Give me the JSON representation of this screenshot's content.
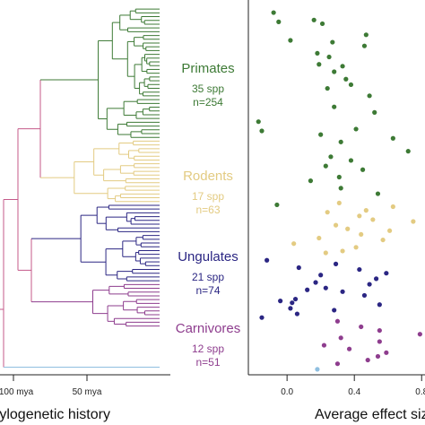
{
  "chart_data": [
    {
      "type": "tree",
      "xlabel": "...ylogenetic history",
      "ticks": [
        {
          "label": "100 mya",
          "value": 100
        },
        {
          "label": "50 mya",
          "value": 50
        }
      ],
      "clades": [
        {
          "name": "Primates",
          "species": "35 spp",
          "n": "n=254",
          "color": "#3d7a35",
          "tips": 35
        },
        {
          "name": "Rodents",
          "species": "17 spp",
          "n": "n=63",
          "color": "#e3cb82",
          "tips": 17
        },
        {
          "name": "Ungulates",
          "species": "21 spp",
          "n": "n=74",
          "color": "#2b2683",
          "tips": 21
        },
        {
          "name": "Carnivores",
          "species": "12 spp",
          "n": "n=51",
          "color": "#8e3d8e",
          "tips": 12
        }
      ],
      "root_color": "#c45a8a",
      "outgroup_color": "#8fbfe0"
    },
    {
      "type": "scatter",
      "xlabel": "Average effect siz...",
      "xticks": [
        0.0,
        0.4,
        0.8
      ],
      "xtick_labels": [
        "0.0",
        "0.4",
        "0.8"
      ],
      "xlim": [
        -0.23,
        0.82
      ],
      "series": [
        {
          "clade": "Primates",
          "color": "#3d7a35",
          "x": [
            -0.08,
            -0.05,
            0.16,
            0.21,
            0.47,
            0.02,
            0.27,
            0.46,
            0.18,
            0.25,
            0.33,
            0.19,
            0.28,
            0.35,
            0.38,
            0.24,
            0.49,
            0.28,
            0.52,
            -0.17,
            -0.15,
            0.41,
            0.2,
            0.63,
            0.32,
            0.72,
            0.26,
            0.38,
            0.23,
            0.45,
            0.31,
            0.14,
            0.32,
            0.54,
            -0.06
          ],
          "y": [
            1,
            6,
            5,
            7,
            13,
            16,
            17,
            19,
            23,
            25,
            30,
            29,
            33,
            37,
            40,
            42,
            46,
            52,
            55,
            60,
            65,
            64,
            67,
            69,
            71,
            76,
            79,
            81,
            84,
            86,
            90,
            92,
            96,
            99,
            105
          ]
        },
        {
          "clade": "Rodents",
          "color": "#e3cb82",
          "x": [
            0.31,
            0.63,
            0.47,
            0.24,
            0.43,
            0.51,
            0.75,
            0.29,
            0.36,
            0.61,
            0.44,
            0.19,
            0.57,
            0.04,
            0.41,
            0.33,
            0.23
          ],
          "y": [
            104,
            106,
            108,
            109,
            111,
            113,
            114,
            116,
            118,
            119,
            121,
            123,
            124,
            126,
            128,
            130,
            131
          ]
        },
        {
          "clade": "Ungulates",
          "color": "#2b2683",
          "x": [
            -0.12,
            0.29,
            0.07,
            0.43,
            0.59,
            0.2,
            0.53,
            0.17,
            0.49,
            0.23,
            0.12,
            0.33,
            0.46,
            0.05,
            -0.04,
            0.03,
            0.55,
            0.02,
            0.28,
            0.06,
            -0.15
          ],
          "y": [
            135,
            137,
            139,
            140,
            142,
            143,
            145,
            147,
            148,
            150,
            151,
            152,
            154,
            156,
            157,
            158,
            159,
            161,
            162,
            164,
            166
          ]
        },
        {
          "clade": "Carnivores",
          "color": "#8e3d8e",
          "x": [
            0.3,
            0.44,
            0.55,
            0.79,
            0.32,
            0.55,
            0.22,
            0.37,
            0.59,
            0.54,
            0.48,
            0.3
          ],
          "y": [
            168,
            171,
            173,
            175,
            177,
            179,
            181,
            183,
            185,
            187,
            189,
            191
          ]
        },
        {
          "clade": "Outgroup",
          "color": "#8fbfe0",
          "x": [
            0.18
          ],
          "y": [
            194
          ]
        }
      ]
    }
  ]
}
